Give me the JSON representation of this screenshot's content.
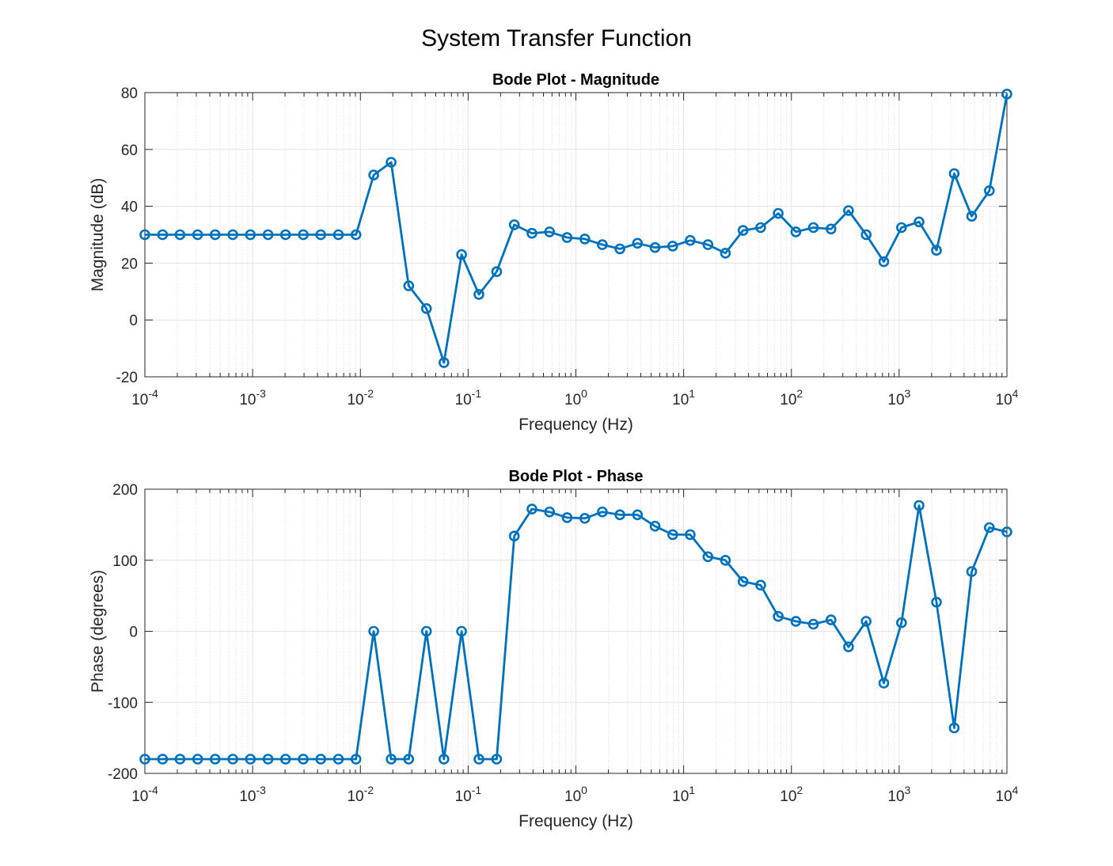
{
  "figure": {
    "title": "System Transfer Function"
  },
  "chart_data": [
    {
      "type": "line",
      "title": "Bode Plot - Magnitude",
      "xlabel": "Frequency (Hz)",
      "ylabel": "Magnitude (dB)",
      "xscale": "log",
      "xlim": [
        0.0001,
        10000
      ],
      "ylim": [
        -20,
        80
      ],
      "yticks": [
        -20,
        0,
        20,
        40,
        60,
        80
      ],
      "xticks": [
        0.0001,
        0.001,
        0.01,
        0.1,
        1,
        10,
        100,
        1000,
        10000
      ],
      "xtick_labels": [
        {
          "base": "10",
          "exp": "-4"
        },
        {
          "base": "10",
          "exp": "-3"
        },
        {
          "base": "10",
          "exp": "-2"
        },
        {
          "base": "10",
          "exp": "-1"
        },
        {
          "base": "10",
          "exp": "0"
        },
        {
          "base": "10",
          "exp": "1"
        },
        {
          "base": "10",
          "exp": "2"
        },
        {
          "base": "10",
          "exp": "3"
        },
        {
          "base": "10",
          "exp": "4"
        }
      ],
      "grid": true,
      "color": "#0072BD",
      "marker": "circle",
      "series": [
        {
          "x": [
            0.0001,
            0.000146,
            0.000212,
            0.000309,
            0.000449,
            0.000655,
            0.000954,
            0.00139,
            0.00202,
            0.00295,
            0.00429,
            0.00625,
            0.0091,
            0.0133,
            0.0193,
            0.0281,
            0.041,
            0.0596,
            0.0869,
            0.126,
            0.184,
            0.268,
            0.391,
            0.569,
            0.829,
            1.21,
            1.76,
            2.56,
            3.73,
            5.43,
            7.91,
            11.5,
            16.8,
            24.4,
            35.6,
            51.8,
            75.4,
            110,
            160,
            233,
            339,
            494,
            720,
            1050,
            1530,
            2220,
            3240,
            4710,
            6870,
            10000
          ],
          "y": [
            30,
            30,
            30,
            30,
            30,
            30,
            30,
            30,
            30,
            30,
            30,
            30,
            30,
            51,
            55.5,
            12,
            4,
            -15,
            23,
            9,
            17,
            33.5,
            30.5,
            31,
            29,
            28.5,
            26.5,
            25,
            27,
            25.5,
            26,
            28,
            26.5,
            23.5,
            31.5,
            32.5,
            37.5,
            31,
            32.5,
            32,
            38.5,
            30,
            20.5,
            32.5,
            34.5,
            24.5,
            51.5,
            36.5,
            45.5,
            79.5
          ]
        }
      ]
    },
    {
      "type": "line",
      "title": "Bode Plot - Phase",
      "xlabel": "Frequency (Hz)",
      "ylabel": "Phase (degrees)",
      "xscale": "log",
      "xlim": [
        0.0001,
        10000
      ],
      "ylim": [
        -200,
        200
      ],
      "yticks": [
        -200,
        -100,
        0,
        100,
        200
      ],
      "xticks": [
        0.0001,
        0.001,
        0.01,
        0.1,
        1,
        10,
        100,
        1000,
        10000
      ],
      "xtick_labels": [
        {
          "base": "10",
          "exp": "-4"
        },
        {
          "base": "10",
          "exp": "-3"
        },
        {
          "base": "10",
          "exp": "-2"
        },
        {
          "base": "10",
          "exp": "-1"
        },
        {
          "base": "10",
          "exp": "0"
        },
        {
          "base": "10",
          "exp": "1"
        },
        {
          "base": "10",
          "exp": "2"
        },
        {
          "base": "10",
          "exp": "3"
        },
        {
          "base": "10",
          "exp": "4"
        }
      ],
      "grid": true,
      "color": "#0072BD",
      "marker": "circle",
      "series": [
        {
          "x": [
            0.0001,
            0.000146,
            0.000212,
            0.000309,
            0.000449,
            0.000655,
            0.000954,
            0.00139,
            0.00202,
            0.00295,
            0.00429,
            0.00625,
            0.0091,
            0.0133,
            0.0193,
            0.0281,
            0.041,
            0.0596,
            0.0869,
            0.126,
            0.184,
            0.268,
            0.391,
            0.569,
            0.829,
            1.21,
            1.76,
            2.56,
            3.73,
            5.43,
            7.91,
            11.5,
            16.8,
            24.4,
            35.6,
            51.8,
            75.4,
            110,
            160,
            233,
            339,
            494,
            720,
            1050,
            1530,
            2220,
            3240,
            4710,
            6870,
            10000
          ],
          "y": [
            -180,
            -180,
            -180,
            -180,
            -180,
            -180,
            -180,
            -180,
            -180,
            -180,
            -180,
            -180,
            -180,
            0,
            -180,
            -180,
            0,
            -180,
            0,
            -180,
            -180,
            134,
            172,
            168,
            160,
            159,
            168,
            164,
            164,
            148,
            136,
            136,
            105,
            100,
            70,
            65,
            21,
            14,
            10,
            16,
            -22,
            14,
            -73,
            12,
            177,
            41,
            -136,
            84,
            146,
            140
          ]
        }
      ]
    }
  ]
}
